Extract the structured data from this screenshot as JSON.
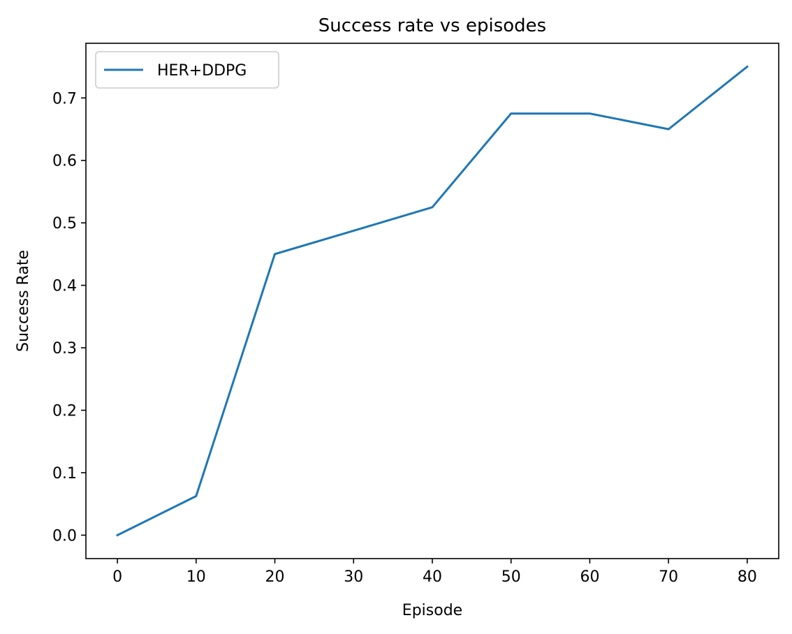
{
  "chart_data": {
    "type": "line",
    "title": "Success rate vs episodes",
    "xlabel": "Episode",
    "ylabel": "Success Rate",
    "xlim": [
      -4,
      84
    ],
    "ylim": [
      -0.0375,
      0.7875
    ],
    "x_ticks": [
      0,
      10,
      20,
      30,
      40,
      50,
      60,
      70,
      80
    ],
    "y_ticks": [
      0.0,
      0.1,
      0.2,
      0.3,
      0.4,
      0.5,
      0.6,
      0.7
    ],
    "x_tick_labels": [
      "0",
      "10",
      "20",
      "30",
      "40",
      "50",
      "60",
      "70",
      "80"
    ],
    "y_tick_labels": [
      "0.0",
      "0.1",
      "0.2",
      "0.3",
      "0.4",
      "0.5",
      "0.6",
      "0.7"
    ],
    "grid": false,
    "legend": {
      "placement": "upper-left"
    },
    "series": [
      {
        "name": "HER+DDPG",
        "color": "#1f77b4",
        "x": [
          0,
          10,
          20,
          30,
          40,
          50,
          60,
          70,
          80
        ],
        "y": [
          0.0,
          0.0625,
          0.45,
          0.4875,
          0.525,
          0.675,
          0.675,
          0.65,
          0.75
        ]
      }
    ]
  }
}
